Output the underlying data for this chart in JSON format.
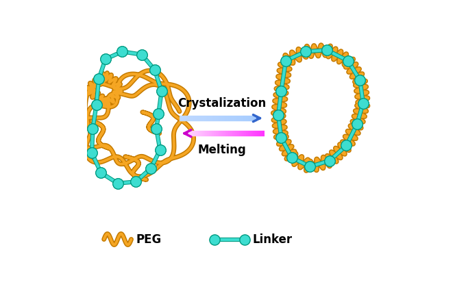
{
  "bg_color": "#ffffff",
  "peg_color": "#F5A623",
  "peg_edge_color": "#C47A00",
  "linker_color": "#3DDDD0",
  "linker_edge_color": "#009980",
  "label_crystallization": "Crystalization",
  "label_melting": "Melting",
  "label_peg": "PEG",
  "label_linker": "Linker",
  "figsize": [
    6.8,
    4.25
  ],
  "dpi": 100
}
